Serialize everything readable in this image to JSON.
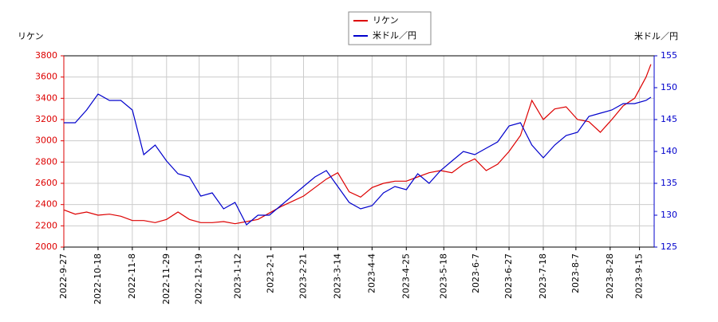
{
  "chart_data": {
    "type": "line",
    "y_label": "リケン",
    "y2_label": "米ドル／円",
    "x": [
      "2022-09-27",
      "2022-10-04",
      "2022-10-11",
      "2022-10-18",
      "2022-10-25",
      "2022-11-01",
      "2022-11-08",
      "2022-11-15",
      "2022-11-22",
      "2022-11-29",
      "2022-12-06",
      "2022-12-13",
      "2022-12-20",
      "2022-12-27",
      "2023-01-03",
      "2023-01-10",
      "2023-01-17",
      "2023-01-24",
      "2023-01-31",
      "2023-02-07",
      "2023-02-14",
      "2023-02-21",
      "2023-02-28",
      "2023-03-07",
      "2023-03-14",
      "2023-03-21",
      "2023-03-28",
      "2023-04-04",
      "2023-04-11",
      "2023-04-18",
      "2023-04-25",
      "2023-05-02",
      "2023-05-09",
      "2023-05-16",
      "2023-05-23",
      "2023-05-30",
      "2023-06-06",
      "2023-06-13",
      "2023-06-20",
      "2023-06-27",
      "2023-07-04",
      "2023-07-11",
      "2023-07-18",
      "2023-07-25",
      "2023-08-01",
      "2023-08-08",
      "2023-08-15",
      "2023-08-22",
      "2023-08-29",
      "2023-09-05",
      "2023-09-12",
      "2023-09-19",
      "2023-09-22"
    ],
    "series": [
      {
        "name": "リケン",
        "color": "#dd0000",
        "values": [
          2350,
          2310,
          2330,
          2300,
          2310,
          2290,
          2250,
          2250,
          2230,
          2260,
          2330,
          2260,
          2230,
          2230,
          2240,
          2220,
          2240,
          2260,
          2320,
          2380,
          2430,
          2480,
          2560,
          2640,
          2700,
          2520,
          2470,
          2560,
          2600,
          2620,
          2620,
          2660,
          2700,
          2720,
          2700,
          2780,
          2830,
          2720,
          2780,
          2900,
          3050,
          3380,
          3200,
          3300,
          3320,
          3200,
          3180,
          3080,
          3200,
          3330,
          3400,
          3600,
          3720
        ]
      },
      {
        "name": "米ドル／円",
        "color": "#0000cc",
        "axis": "y2",
        "values": [
          144.5,
          144.5,
          146.5,
          149,
          148,
          148,
          146.5,
          139.5,
          141,
          138.5,
          136.5,
          136,
          133,
          133.5,
          131,
          132,
          128.5,
          130,
          130,
          131.5,
          133,
          134.5,
          136,
          137,
          134.5,
          132,
          131,
          131.5,
          133.5,
          134.5,
          134,
          136.5,
          135,
          137,
          138.5,
          140,
          139.5,
          140.5,
          141.5,
          144,
          144.5,
          141,
          139,
          141,
          142.5,
          143,
          145.5,
          146,
          146.5,
          147.5,
          147.5,
          148,
          148.5
        ]
      }
    ],
    "xlim": [
      "2022-09-27",
      "2023-09-24"
    ],
    "xticks": [
      {
        "value": "2022-09-27",
        "label": "2022-9-27"
      },
      {
        "value": "2022-10-18",
        "label": "2022-10-18"
      },
      {
        "value": "2022-11-08",
        "label": "2022-11-8"
      },
      {
        "value": "2022-11-29",
        "label": "2022-11-29"
      },
      {
        "value": "2022-12-19",
        "label": "2022-12-19"
      },
      {
        "value": "2023-01-12",
        "label": "2023-1-12"
      },
      {
        "value": "2023-02-01",
        "label": "2023-2-1"
      },
      {
        "value": "2023-02-21",
        "label": "2023-2-21"
      },
      {
        "value": "2023-03-14",
        "label": "2023-3-14"
      },
      {
        "value": "2023-04-04",
        "label": "2023-4-4"
      },
      {
        "value": "2023-04-25",
        "label": "2023-4-25"
      },
      {
        "value": "2023-05-18",
        "label": "2023-5-18"
      },
      {
        "value": "2023-06-07",
        "label": "2023-6-7"
      },
      {
        "value": "2023-06-27",
        "label": "2023-6-27"
      },
      {
        "value": "2023-07-18",
        "label": "2023-7-18"
      },
      {
        "value": "2023-08-07",
        "label": "2023-8-7"
      },
      {
        "value": "2023-08-28",
        "label": "2023-8-28"
      },
      {
        "value": "2023-09-15",
        "label": "2023-9-15"
      }
    ],
    "ylim": [
      2000,
      3800
    ],
    "yticks": [
      2000,
      2200,
      2400,
      2600,
      2800,
      3000,
      3200,
      3400,
      3600,
      3800
    ],
    "y2lim": [
      125,
      155
    ],
    "y2ticks": [
      125,
      130,
      135,
      140,
      145,
      150,
      155
    ],
    "grid": true
  }
}
